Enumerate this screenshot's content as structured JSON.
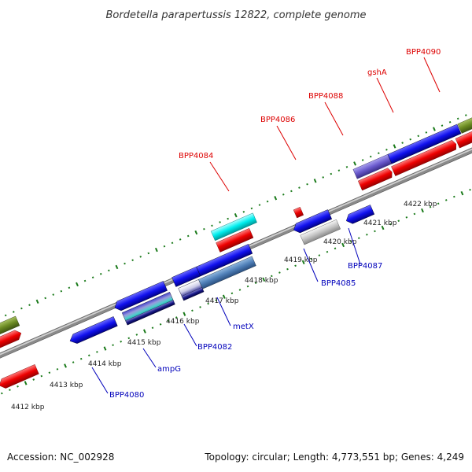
{
  "title": "Bordetella parapertussis 12822, complete genome",
  "footer": {
    "accession": "Accession: NC_002928",
    "summary": "Topology: circular; Length: 4,773,551 bp; Genes: 4,249"
  },
  "colors": {
    "forward_label": "#dd0000",
    "reverse_label": "#0000bb",
    "tick": "#1a7a1a",
    "backbone": "#888888"
  },
  "kbp_labels": [
    "4412 kbp",
    "4413 kbp",
    "4414 kbp",
    "4415 kbp",
    "4416 kbp",
    "4417 kbp",
    "4418 kbp",
    "4419 kbp",
    "4420 kbp",
    "4421 kbp",
    "4422 kbp"
  ],
  "forward_gene_labels": [
    "BPP4084",
    "BPP4086",
    "BPP4088",
    "gshA",
    "BPP4090"
  ],
  "reverse_gene_labels": [
    "BPP4080",
    "ampG",
    "BPP4082",
    "metX",
    "BPP4085",
    "BPP4087"
  ]
}
